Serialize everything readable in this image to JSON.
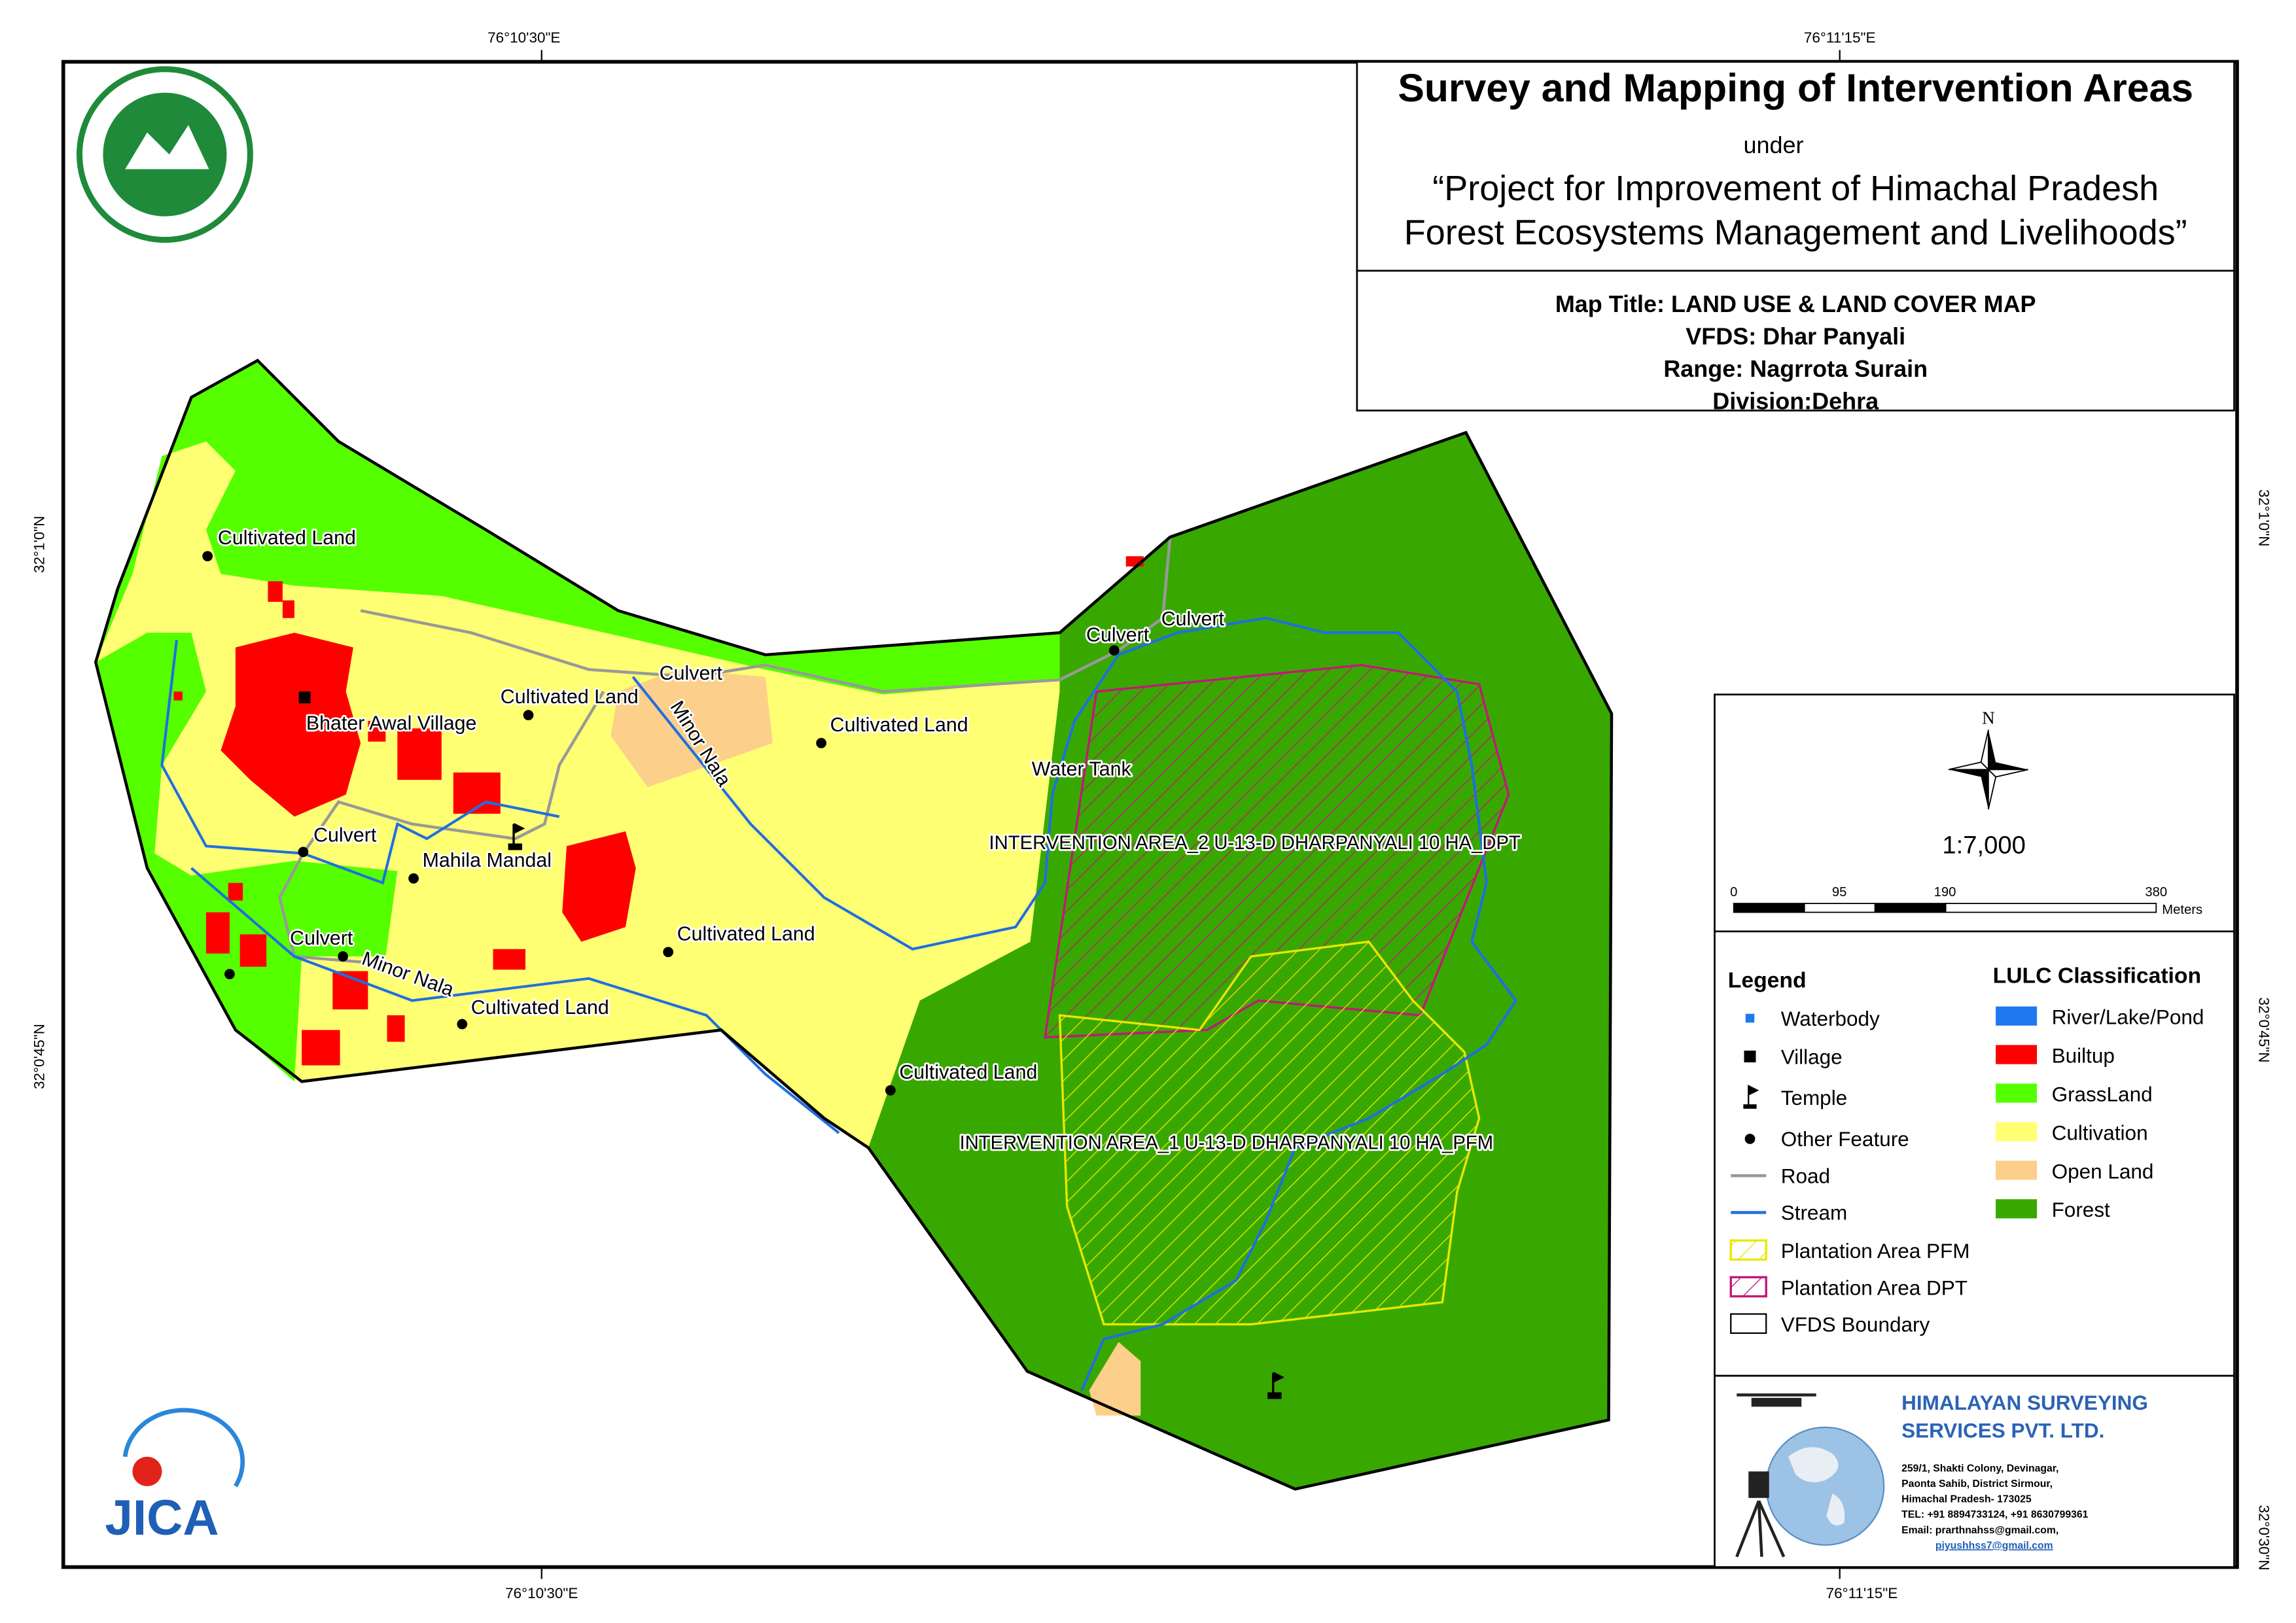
{
  "coordinates": {
    "top": [
      "76°10'30\"E",
      "76°11'15\"E"
    ],
    "bottom": [
      "76°10'30\"E",
      "76°11'15\"E"
    ],
    "left": [
      "32°1'0\"N",
      "32°0'45\"N"
    ],
    "right": [
      "32°1'0\"N",
      "32°0'45\"N",
      "32°0'30\"N"
    ]
  },
  "header": {
    "title": "Survey and Mapping of Intervention Areas",
    "under": "under",
    "project": [
      "“Project for Improvement of Himachal Pradesh",
      "Forest Ecosystems Management and Livelihoods”"
    ]
  },
  "map_info": [
    "Map Title: LAND USE & LAND COVER MAP",
    "VFDS: Dhar Panyali",
    "Range: Nagrrota Surain",
    "Division:Dehra"
  ],
  "north": "N",
  "scale": "1:7,000",
  "scale_bar": {
    "ticks": [
      0,
      95,
      190,
      380
    ],
    "unit": "Meters"
  },
  "legend": {
    "title": "Legend",
    "items": [
      "Waterbody",
      "Village",
      "Temple",
      "Other Feature",
      "Road",
      "Stream",
      "Plantation Area PFM",
      "Plantation Area DPT",
      "VFDS Boundary"
    ]
  },
  "lulc": {
    "title": "LULC Classification",
    "classes": [
      {
        "label": "River/Lake/Pond",
        "color": "#1f78f0"
      },
      {
        "label": "Builtup",
        "color": "#ff0000"
      },
      {
        "label": "GrassLand",
        "color": "#55ff00"
      },
      {
        "label": "Cultivation",
        "color": "#ffff73"
      },
      {
        "label": "Open Land",
        "color": "#fccf8a"
      },
      {
        "label": "Forest",
        "color": "#38a800"
      }
    ]
  },
  "company": {
    "name": [
      "HIMALAYAN SURVEYING",
      "SERVICES PVT. LTD."
    ],
    "address": [
      "259/1, Shakti Colony, Devinagar,",
      "Paonta Sahib, District Sirmour,",
      "Himachal Pradesh- 173025",
      "TEL: +91 8894733124, +91 8630799361",
      "Email: prarthnahss@gmail.com,",
      "piyushhss7@gmail.com"
    ]
  },
  "logos": {
    "jica": "JICA"
  },
  "map_labels": [
    "Cultivated Land",
    "Bhater Awal Village",
    "Cultivated Land",
    "Culvert",
    "Minor Nala",
    "Cultivated Land",
    "Culvert",
    "Culvert",
    "Water Tank",
    "Culvert",
    "Mahila Mandal",
    "Culvert",
    "Minor Nala",
    "Cultivated Land",
    "Cultivated Land",
    "Cultivated Land",
    "INTERVENTION AREA_2 U-13-D DHARPANYALI 10 HA_DPT",
    "INTERVENTION AREA_1 U-13-D DHARPANYALI 10 HA_PFM"
  ]
}
